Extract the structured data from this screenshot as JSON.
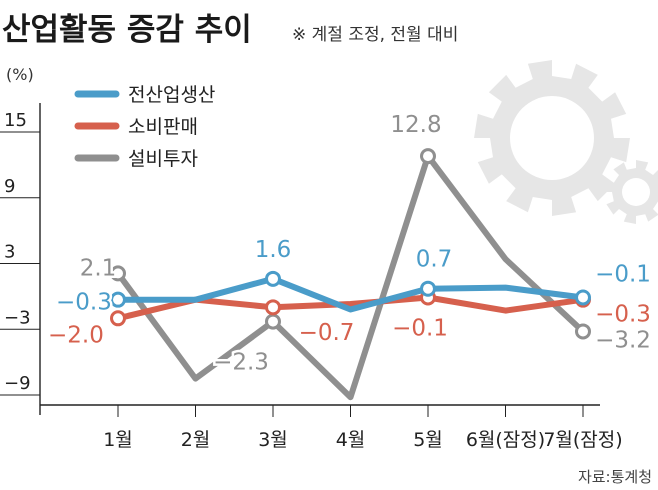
{
  "title": "산업활동 증감 추이",
  "note": "※ 계절 조정, 전월 대비",
  "source": "자료:통계청",
  "unit_label": "(%)",
  "colors": {
    "total": "#4a9cc9",
    "consumption": "#d6604d",
    "investment": "#8f8f8f",
    "gear": "#e6e6e6"
  },
  "chart_data": {
    "type": "line",
    "title": "산업활동 증감 추이",
    "subtitle": "※ 계절 조정, 전월 대비",
    "ylabel": "(%)",
    "ylim": [
      -9,
      15
    ],
    "yticks": [
      15,
      9,
      3,
      -3,
      -9
    ],
    "ytick_labels": [
      "15",
      "9",
      "3",
      "−3",
      "−9"
    ],
    "grid": false,
    "legend_position": "top-left",
    "categories": [
      "1월",
      "2월",
      "3월",
      "4월",
      "5월",
      "6월(잠정)",
      "7월(잠정)"
    ],
    "series": [
      {
        "name": "전산업생산",
        "color": "#4a9cc9",
        "values": [
          -0.3,
          -0.3,
          1.6,
          -1.2,
          0.7,
          0.8,
          -0.1
        ],
        "markers": [
          0,
          2,
          4,
          6
        ],
        "labels": [
          "−0.3",
          "",
          "1.6",
          "",
          "0.7",
          "",
          "−0.1"
        ]
      },
      {
        "name": "소비판매",
        "color": "#d6604d",
        "values": [
          -2.0,
          -0.3,
          -1.0,
          -0.7,
          -0.1,
          -1.3,
          -0.3
        ],
        "markers": [
          0,
          2,
          4,
          6
        ],
        "labels": [
          "−2.0",
          "",
          "",
          "−0.7",
          "−0.1",
          "",
          "−0.3"
        ]
      },
      {
        "name": "설비투자",
        "color": "#8f8f8f",
        "values": [
          2.1,
          -7.5,
          -2.3,
          -9.2,
          12.8,
          3.4,
          -3.2
        ],
        "markers": [
          0,
          2,
          4,
          6
        ],
        "labels": [
          "2.1",
          "",
          "−2.3",
          "",
          "12.8",
          "",
          "−3.2"
        ]
      }
    ]
  }
}
